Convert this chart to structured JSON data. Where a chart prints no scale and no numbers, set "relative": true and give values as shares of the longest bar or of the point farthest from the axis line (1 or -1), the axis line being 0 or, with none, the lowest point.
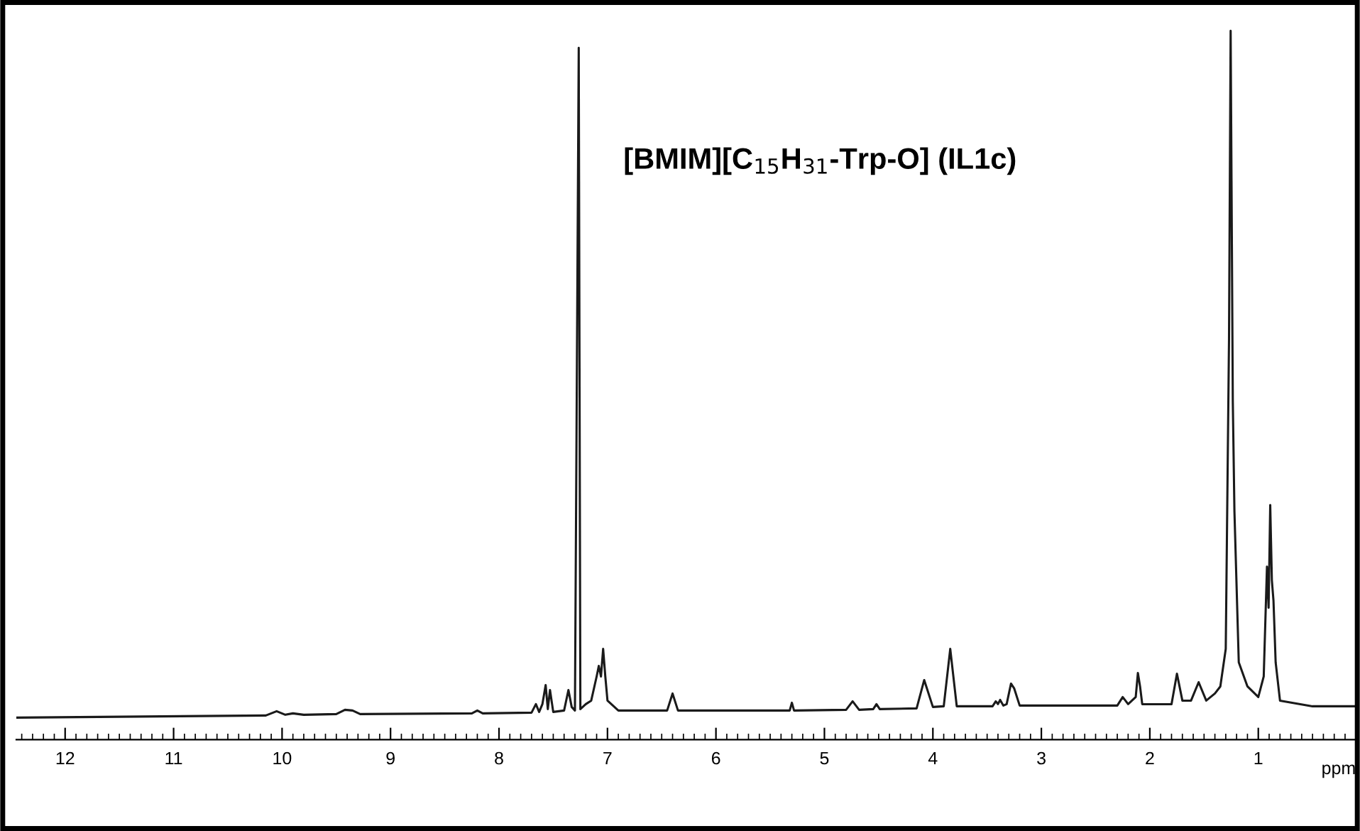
{
  "chart_data": {
    "type": "line",
    "relative": true,
    "xlabel": "ppm",
    "annotations": [
      "[BMIM][C$_{15}$H$_{31}$-Trp-O] (IL1c)"
    ],
    "xlim": [
      12.45,
      0.1
    ],
    "xticks": [
      12,
      11,
      10,
      9,
      8,
      7,
      6,
      5,
      4,
      3,
      2,
      1
    ],
    "grid": false,
    "legend": false,
    "marker": "none",
    "line_style": "solid",
    "series": [
      {
        "color": "#1a1a1a",
        "x": [
          12.45,
          10.15,
          10.05,
          9.97,
          9.9,
          9.8,
          9.5,
          9.42,
          9.35,
          9.28,
          8.25,
          8.2,
          8.15,
          7.7,
          7.66,
          7.63,
          7.6,
          7.57,
          7.55,
          7.53,
          7.5,
          7.4,
          7.36,
          7.33,
          7.3,
          7.265,
          7.25,
          7.2,
          7.15,
          7.1,
          7.08,
          7.06,
          7.04,
          7.02,
          7.0,
          6.9,
          6.45,
          6.4,
          6.35,
          5.32,
          5.3,
          5.28,
          4.8,
          4.74,
          4.68,
          4.55,
          4.52,
          4.49,
          4.15,
          4.08,
          4.0,
          3.9,
          3.84,
          3.78,
          3.45,
          3.42,
          3.4,
          3.38,
          3.35,
          3.32,
          3.28,
          3.25,
          3.2,
          2.3,
          2.25,
          2.2,
          2.13,
          2.11,
          2.09,
          2.07,
          1.8,
          1.75,
          1.7,
          1.62,
          1.55,
          1.48,
          1.4,
          1.35,
          1.3,
          1.27,
          1.255,
          1.235,
          1.22,
          1.18,
          1.1,
          1.0,
          0.95,
          0.92,
          0.905,
          0.89,
          0.875,
          0.86,
          0.84,
          0.8,
          0.5,
          0.1
        ],
        "values": [
          0.031,
          0.034,
          0.04,
          0.035,
          0.037,
          0.035,
          0.036,
          0.042,
          0.041,
          0.036,
          0.037,
          0.041,
          0.037,
          0.038,
          0.05,
          0.039,
          0.05,
          0.077,
          0.043,
          0.07,
          0.039,
          0.041,
          0.07,
          0.046,
          0.041,
          0.976,
          0.043,
          0.05,
          0.055,
          0.089,
          0.104,
          0.089,
          0.128,
          0.089,
          0.055,
          0.041,
          0.041,
          0.065,
          0.041,
          0.041,
          0.052,
          0.041,
          0.042,
          0.054,
          0.042,
          0.043,
          0.05,
          0.043,
          0.044,
          0.084,
          0.046,
          0.047,
          0.128,
          0.047,
          0.047,
          0.054,
          0.05,
          0.056,
          0.048,
          0.05,
          0.079,
          0.072,
          0.048,
          0.048,
          0.06,
          0.05,
          0.06,
          0.094,
          0.075,
          0.05,
          0.05,
          0.093,
          0.055,
          0.055,
          0.081,
          0.055,
          0.065,
          0.075,
          0.128,
          0.564,
          1.0,
          0.477,
          0.322,
          0.109,
          0.075,
          0.06,
          0.089,
          0.244,
          0.186,
          0.331,
          0.225,
          0.196,
          0.109,
          0.055,
          0.047,
          0.047
        ]
      }
    ]
  }
}
